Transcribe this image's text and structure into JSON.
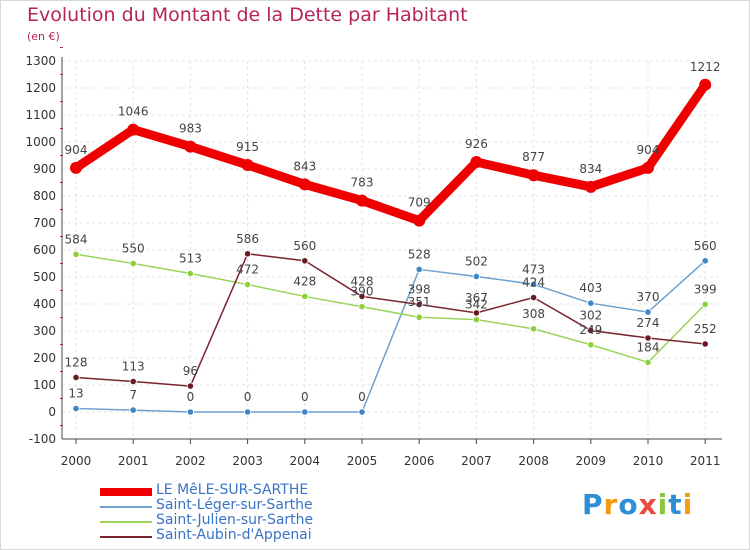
{
  "title": "Evolution du Montant de la Dette par Habitant",
  "unit_label": "(en €)",
  "logo": {
    "text": "Proxiti",
    "letters": [
      {
        "ch": "P",
        "color": "#2e8fd6"
      },
      {
        "ch": "r",
        "color": "#f39c12"
      },
      {
        "ch": "o",
        "color": "#2e8fd6"
      },
      {
        "ch": "x",
        "color": "#e74c3c"
      },
      {
        "ch": "i",
        "color": "#8dc63f"
      },
      {
        "ch": "t",
        "color": "#2e8fd6"
      },
      {
        "ch": "i",
        "color": "#f39c12"
      }
    ]
  },
  "chart_data": {
    "type": "line",
    "title": "Evolution du Montant de la Dette par Habitant",
    "ylabel": "(en €)",
    "xlabel": "",
    "x": [
      "2000",
      "2001",
      "2002",
      "2003",
      "2004",
      "2005",
      "2006",
      "2007",
      "2008",
      "2009",
      "2010",
      "2011"
    ],
    "ylim": [
      -100,
      1300
    ],
    "yticks": [
      -100,
      0,
      100,
      200,
      300,
      400,
      500,
      600,
      700,
      800,
      900,
      1000,
      1100,
      1200,
      1300
    ],
    "grid": true,
    "legend_position": "bottom-left",
    "series": [
      {
        "name": "LE MêLE-SUR-SARTHE",
        "color": "#ee0000",
        "values": [
          904,
          1046,
          983,
          915,
          843,
          783,
          709,
          926,
          877,
          834,
          904,
          1212
        ],
        "labels": [
          "904",
          "1046",
          "983",
          "915",
          "843",
          "783",
          "709",
          "926",
          "877",
          "834",
          "904",
          "1212"
        ]
      },
      {
        "name": "Saint-Léger-sur-Sarthe",
        "color": "#6f9fd0",
        "marker": "#3f86c9",
        "values": [
          13,
          7,
          0,
          0,
          0,
          0,
          528,
          502,
          473,
          403,
          370,
          560
        ],
        "labels": [
          "13",
          "7",
          "0",
          "0",
          "0",
          "0",
          "528",
          "502",
          "473",
          "403",
          "370",
          "560"
        ]
      },
      {
        "name": "Saint-Julien-sur-Sarthe",
        "color": "#9ad45a",
        "marker": "#8dd13a",
        "values": [
          584,
          550,
          513,
          472,
          428,
          390,
          351,
          342,
          308,
          249,
          184,
          399
        ],
        "labels": [
          "584",
          "550",
          "513",
          "472",
          "428",
          "390",
          "351",
          "342",
          "308",
          "249",
          "184",
          "399"
        ]
      },
      {
        "name": "Saint-Aubin-d'Appenai",
        "color": "#7a2530",
        "marker": "#6b1a22",
        "values": [
          128,
          113,
          96,
          586,
          560,
          428,
          398,
          367,
          424,
          302,
          274,
          252
        ],
        "labels": [
          "128",
          "113",
          "96",
          "586",
          "560",
          "428",
          "398",
          "367",
          "424",
          "302",
          "274",
          "252"
        ]
      }
    ]
  }
}
